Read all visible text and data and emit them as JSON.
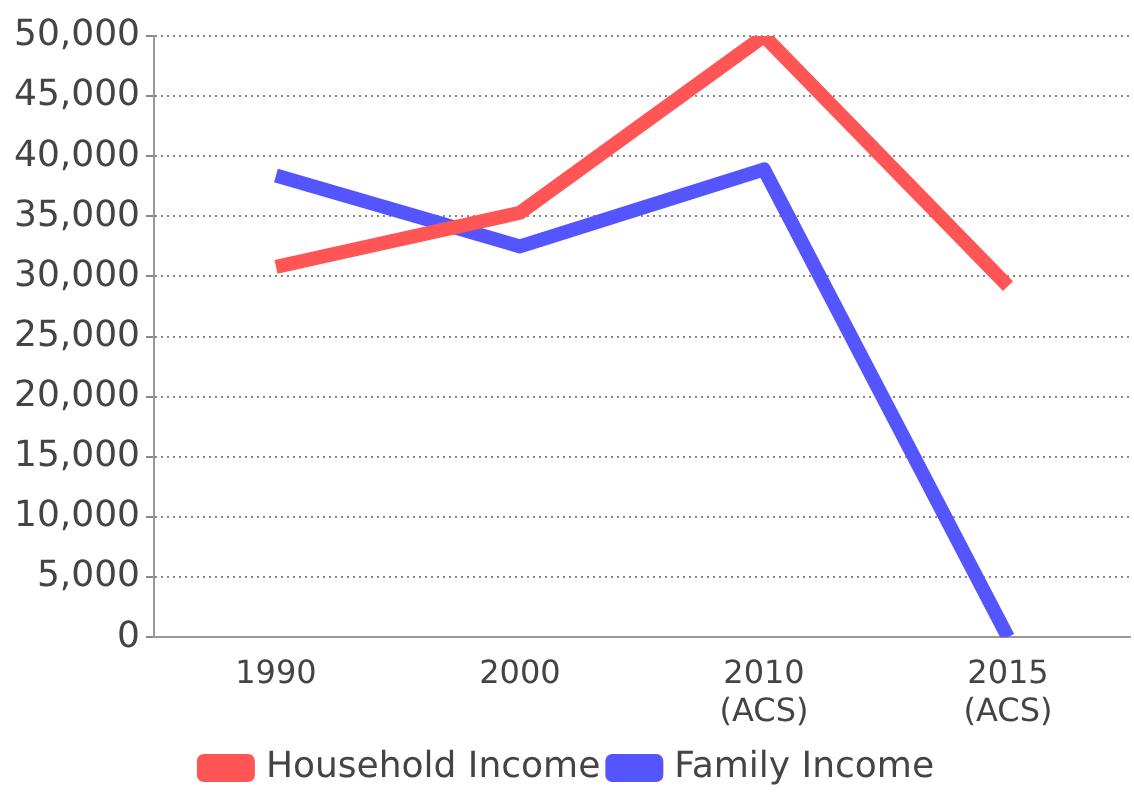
{
  "chart_data": {
    "type": "line",
    "categories": [
      "1990",
      "2000",
      "2010 (ACS)",
      "2015 (ACS)"
    ],
    "series": [
      {
        "name": "Household Income",
        "color": "#ff5555",
        "values": [
          30800,
          35300,
          50000,
          29200
        ]
      },
      {
        "name": "Family Income",
        "color": "#5555ff",
        "values": [
          38400,
          32500,
          38900,
          0
        ]
      }
    ],
    "ylim": [
      0,
      50000
    ],
    "yticks": [
      0,
      {
        "value": 5000,
        "label": "5,000"
      },
      {
        "value": 10000,
        "label": "10,000"
      },
      {
        "value": 15000,
        "label": "15,000"
      },
      {
        "value": 20000,
        "label": "20,000"
      },
      {
        "value": 25000,
        "label": "25,000"
      },
      {
        "value": 30000,
        "label": "30,000"
      },
      {
        "value": 35000,
        "label": "35,000"
      },
      {
        "value": 40000,
        "label": "40,000"
      },
      {
        "value": 45000,
        "label": "45,000"
      },
      {
        "value": 50000,
        "label": "50,000"
      }
    ],
    "grid": "y",
    "legend": "bottom",
    "marker": "none",
    "line_style": "solid"
  }
}
